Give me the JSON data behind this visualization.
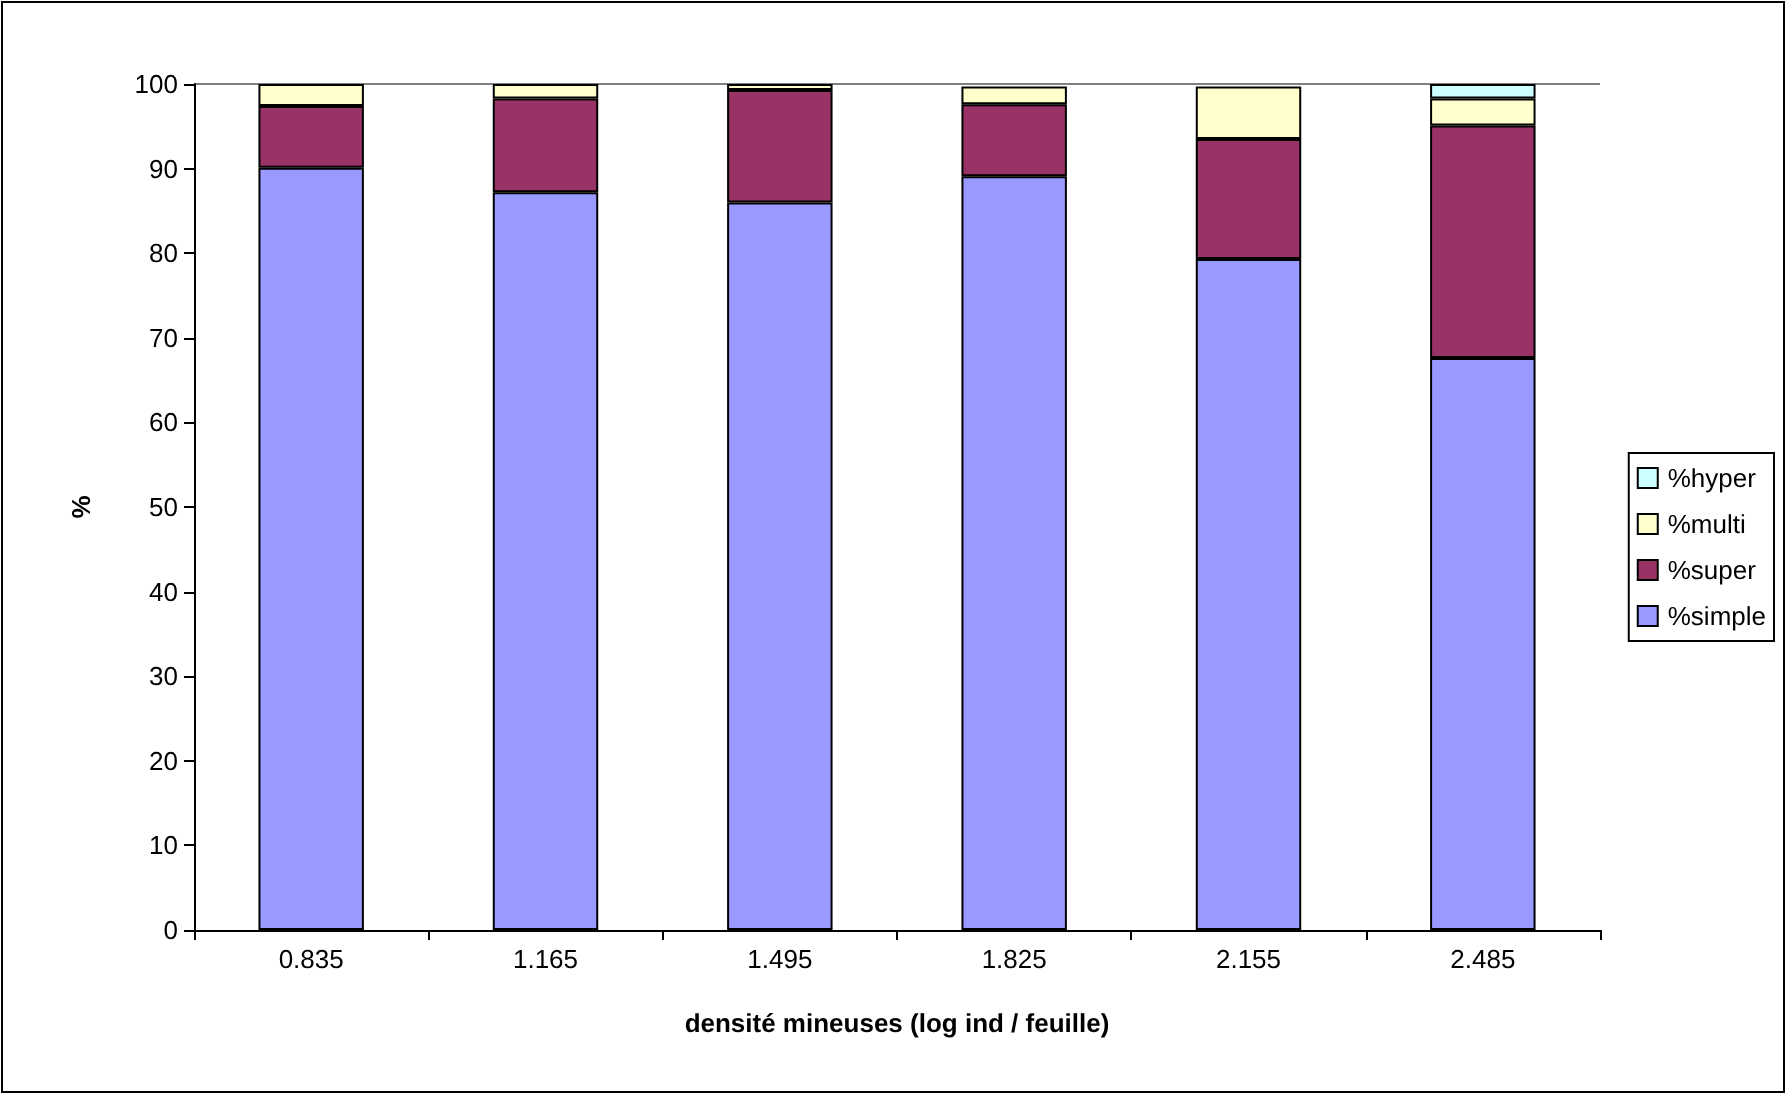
{
  "chart_data": {
    "type": "bar",
    "stacked": true,
    "xlabel": "densité mineuses (log ind / feuille)",
    "ylabel": "%",
    "categories": [
      "0.835",
      "1.165",
      "1.495",
      "1.825",
      "2.155",
      "2.485"
    ],
    "series": [
      {
        "name": "%simple",
        "color": "#9999ff",
        "values": [
          90.1,
          87.2,
          86.0,
          89.1,
          79.3,
          67.6
        ]
      },
      {
        "name": "%super",
        "color": "#993366",
        "values": [
          7.3,
          11.1,
          13.3,
          8.5,
          14.2,
          27.5
        ]
      },
      {
        "name": "%multi",
        "color": "#ffffcc",
        "values": [
          2.6,
          1.7,
          0.7,
          2.1,
          6.2,
          3.2
        ]
      },
      {
        "name": "%hyper",
        "color": "#ccffff",
        "values": [
          0,
          0,
          0,
          null,
          null,
          1.7
        ]
      }
    ],
    "ylim": [
      0,
      100
    ],
    "yticks": [
      0,
      10,
      20,
      30,
      40,
      50,
      60,
      70,
      80,
      90,
      100
    ],
    "grid": false,
    "legend": "right"
  }
}
